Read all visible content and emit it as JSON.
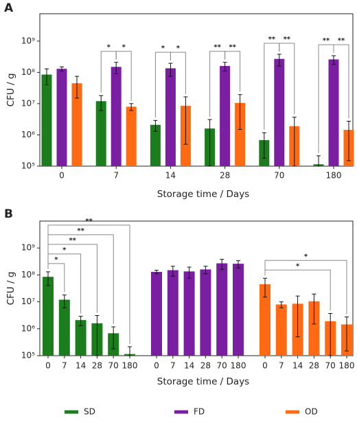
{
  "chart_data": [
    {
      "type": "bar",
      "panel_label": "A",
      "x_label": "Storage time / Days",
      "y_label": "CFU / g",
      "group_by": "category",
      "log_scale": true,
      "categories": [
        "0",
        "7",
        "14",
        "28",
        "70",
        "180"
      ],
      "series": [
        {
          "name": "SD",
          "color": "#1b7d1b",
          "values": [
            85000000,
            12000000,
            2100000,
            1600000,
            680000,
            115000
          ],
          "errors": [
            45000000,
            6000000,
            800000,
            1500000,
            500000,
            100000
          ]
        },
        {
          "name": "FD",
          "color": "#7a1fa2",
          "values": [
            130000000,
            150000000,
            135000000,
            160000000,
            270000000,
            260000000
          ],
          "errors": [
            20000000,
            60000000,
            60000000,
            50000000,
            110000000,
            80000000
          ]
        },
        {
          "name": "OD",
          "color": "#ff6a13",
          "values": [
            45000000,
            8000000,
            8500000,
            10500000,
            1900000,
            1450000
          ],
          "errors": [
            30000000,
            2000000,
            8000000,
            9000000,
            1800000,
            1300000
          ]
        }
      ],
      "ylim": [
        100000,
        7500000000
      ],
      "yticks": [
        {
          "value": 100000,
          "label": "10⁵"
        },
        {
          "value": 1000000,
          "label": "10⁶"
        },
        {
          "value": 10000000,
          "label": "10⁷"
        },
        {
          "value": 100000000,
          "label": "10⁸"
        },
        {
          "value": 1000000000,
          "label": "10⁹"
        }
      ],
      "annotations": [
        {
          "category": 1,
          "pair": [
            0,
            1
          ],
          "label": "*"
        },
        {
          "category": 1,
          "pair": [
            1,
            2
          ],
          "label": "*"
        },
        {
          "category": 2,
          "pair": [
            0,
            1
          ],
          "label": "*"
        },
        {
          "category": 2,
          "pair": [
            1,
            2
          ],
          "label": "*"
        },
        {
          "category": 3,
          "pair": [
            0,
            1
          ],
          "label": "**"
        },
        {
          "category": 3,
          "pair": [
            1,
            2
          ],
          "label": "**"
        },
        {
          "category": 4,
          "pair": [
            0,
            1
          ],
          "label": "**"
        },
        {
          "category": 4,
          "pair": [
            1,
            2
          ],
          "label": "**"
        },
        {
          "category": 5,
          "pair": [
            0,
            1
          ],
          "label": "**"
        },
        {
          "category": 5,
          "pair": [
            1,
            2
          ],
          "label": "**"
        }
      ]
    },
    {
      "type": "bar",
      "panel_label": "B",
      "x_label": "Storage time / Days",
      "y_label": "CFU / g",
      "group_by": "series",
      "log_scale": true,
      "legend": "bottom",
      "categories": [
        "0",
        "7",
        "14",
        "28",
        "70",
        "180"
      ],
      "series": [
        {
          "name": "SD",
          "color": "#1b7d1b",
          "values": [
            85000000,
            12000000,
            2100000,
            1600000,
            680000,
            115000
          ],
          "errors": [
            45000000,
            6000000,
            800000,
            1500000,
            500000,
            100000
          ]
        },
        {
          "name": "FD",
          "color": "#7a1fa2",
          "values": [
            130000000,
            150000000,
            135000000,
            160000000,
            270000000,
            260000000
          ],
          "errors": [
            20000000,
            60000000,
            60000000,
            50000000,
            110000000,
            80000000
          ]
        },
        {
          "name": "OD",
          "color": "#ff6a13",
          "values": [
            45000000,
            8000000,
            8500000,
            10500000,
            1900000,
            1450000
          ],
          "errors": [
            30000000,
            2000000,
            8000000,
            9000000,
            1800000,
            1300000
          ]
        }
      ],
      "ylim": [
        100000,
        10000000000
      ],
      "yticks": [
        {
          "value": 100000,
          "label": "10⁵"
        },
        {
          "value": 1000000,
          "label": "10⁶"
        },
        {
          "value": 10000000,
          "label": "10⁷"
        },
        {
          "value": 100000000,
          "label": "10⁸"
        },
        {
          "value": 1000000000,
          "label": "10⁹"
        }
      ],
      "annotations": [
        {
          "series": 0,
          "pair": [
            0,
            1
          ],
          "label": "*"
        },
        {
          "series": 0,
          "pair": [
            0,
            2
          ],
          "label": "*"
        },
        {
          "series": 0,
          "pair": [
            0,
            3
          ],
          "label": "**"
        },
        {
          "series": 0,
          "pair": [
            0,
            4
          ],
          "label": "**"
        },
        {
          "series": 0,
          "pair": [
            0,
            5
          ],
          "label": "**"
        },
        {
          "series": 2,
          "pair": [
            0,
            4
          ],
          "label": "*"
        },
        {
          "series": 2,
          "pair": [
            0,
            5
          ],
          "label": "*"
        }
      ]
    }
  ]
}
